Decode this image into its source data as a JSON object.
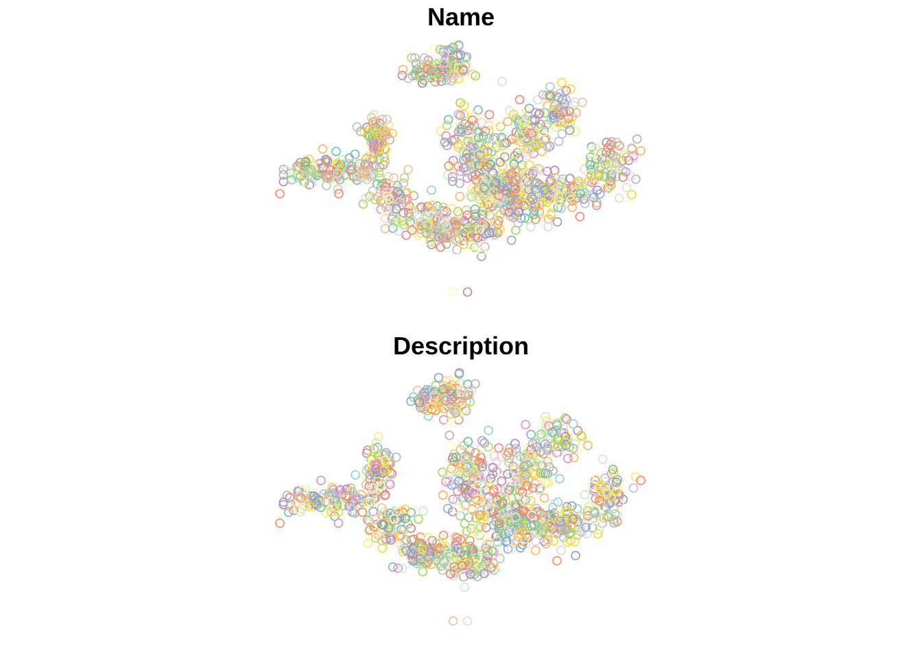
{
  "palette": [
    "#8dd3c7",
    "#ffffb3",
    "#bebada",
    "#fb8072",
    "#80b1d3",
    "#fdb462",
    "#b3de69",
    "#fccde5",
    "#d9d9d9",
    "#bc80bd",
    "#ccebc5",
    "#ffed6f",
    "#66c2a5",
    "#fc8d62",
    "#8da0cb",
    "#e78ac3",
    "#a6d854",
    "#ffd92f",
    "#e5c494",
    "#b3b3b3"
  ],
  "chart_data": [
    {
      "type": "scatter",
      "title": "Name",
      "xlabel": "",
      "ylabel": "",
      "grid": false,
      "axes_visible": false,
      "marker": "open-circle",
      "xlim": [
        0,
        100
      ],
      "ylim": [
        0,
        100
      ],
      "seed": 11,
      "approx_points": 1400,
      "clusters": [
        {
          "x": 42,
          "y": 88,
          "sx": 3.2,
          "sy": 3.0,
          "n": 70
        },
        {
          "x": 48,
          "y": 90,
          "sx": 2.5,
          "sy": 4.0,
          "n": 55
        },
        {
          "x": 27,
          "y": 61,
          "sx": 2.0,
          "sy": 5.0,
          "n": 85
        },
        {
          "x": 8,
          "y": 48,
          "sx": 4.0,
          "sy": 2.5,
          "n": 60
        },
        {
          "x": 19,
          "y": 48,
          "sx": 4.0,
          "sy": 3.0,
          "n": 70
        },
        {
          "x": 31,
          "y": 38,
          "sx": 3.5,
          "sy": 4.0,
          "n": 75
        },
        {
          "x": 41,
          "y": 28,
          "sx": 4.5,
          "sy": 4.0,
          "n": 110
        },
        {
          "x": 53,
          "y": 24,
          "sx": 4.0,
          "sy": 3.5,
          "n": 100
        },
        {
          "x": 53,
          "y": 58,
          "sx": 3.5,
          "sy": 7.0,
          "n": 120
        },
        {
          "x": 65,
          "y": 38,
          "sx": 6.0,
          "sy": 5.0,
          "n": 170
        },
        {
          "x": 68,
          "y": 61,
          "sx": 4.0,
          "sy": 6.0,
          "n": 95
        },
        {
          "x": 77,
          "y": 72,
          "sx": 3.5,
          "sy": 4.0,
          "n": 65
        },
        {
          "x": 79,
          "y": 39,
          "sx": 5.0,
          "sy": 3.5,
          "n": 95
        },
        {
          "x": 91,
          "y": 50,
          "sx": 3.0,
          "sy": 5.0,
          "n": 80
        },
        {
          "x": 61,
          "y": 45,
          "sx": 5.0,
          "sy": 5.0,
          "n": 60
        }
      ],
      "outliers": [
        [
          0,
          39
        ],
        [
          50,
          70
        ],
        [
          50,
          75
        ],
        [
          98,
          53
        ],
        [
          100,
          56
        ],
        [
          48,
          0
        ],
        [
          52,
          0
        ],
        [
          48,
          97
        ]
      ]
    },
    {
      "type": "scatter",
      "title": "Description",
      "xlabel": "",
      "ylabel": "",
      "grid": false,
      "axes_visible": false,
      "marker": "open-circle",
      "xlim": [
        0,
        100
      ],
      "ylim": [
        0,
        100
      ],
      "seed": 29,
      "approx_points": 1400,
      "clusters": [
        {
          "x": 42,
          "y": 88,
          "sx": 3.2,
          "sy": 3.0,
          "n": 70
        },
        {
          "x": 48,
          "y": 90,
          "sx": 2.5,
          "sy": 4.0,
          "n": 55
        },
        {
          "x": 27,
          "y": 61,
          "sx": 2.0,
          "sy": 5.0,
          "n": 85
        },
        {
          "x": 8,
          "y": 48,
          "sx": 4.0,
          "sy": 2.5,
          "n": 60
        },
        {
          "x": 19,
          "y": 48,
          "sx": 4.0,
          "sy": 3.0,
          "n": 70
        },
        {
          "x": 31,
          "y": 38,
          "sx": 3.5,
          "sy": 4.0,
          "n": 75
        },
        {
          "x": 41,
          "y": 28,
          "sx": 4.5,
          "sy": 4.0,
          "n": 110
        },
        {
          "x": 53,
          "y": 24,
          "sx": 4.0,
          "sy": 3.5,
          "n": 100
        },
        {
          "x": 53,
          "y": 58,
          "sx": 3.5,
          "sy": 7.0,
          "n": 120
        },
        {
          "x": 65,
          "y": 38,
          "sx": 6.0,
          "sy": 5.0,
          "n": 170
        },
        {
          "x": 68,
          "y": 61,
          "sx": 4.0,
          "sy": 6.0,
          "n": 95
        },
        {
          "x": 77,
          "y": 72,
          "sx": 3.5,
          "sy": 4.0,
          "n": 65
        },
        {
          "x": 79,
          "y": 39,
          "sx": 5.0,
          "sy": 3.5,
          "n": 95
        },
        {
          "x": 91,
          "y": 50,
          "sx": 3.0,
          "sy": 5.0,
          "n": 80
        },
        {
          "x": 61,
          "y": 45,
          "sx": 5.0,
          "sy": 5.0,
          "n": 60
        }
      ],
      "outliers": [
        [
          0,
          39
        ],
        [
          47,
          74
        ],
        [
          47,
          70
        ],
        [
          98,
          53
        ],
        [
          100,
          56
        ],
        [
          48,
          0
        ],
        [
          52,
          0
        ],
        [
          44,
          97
        ]
      ]
    }
  ]
}
